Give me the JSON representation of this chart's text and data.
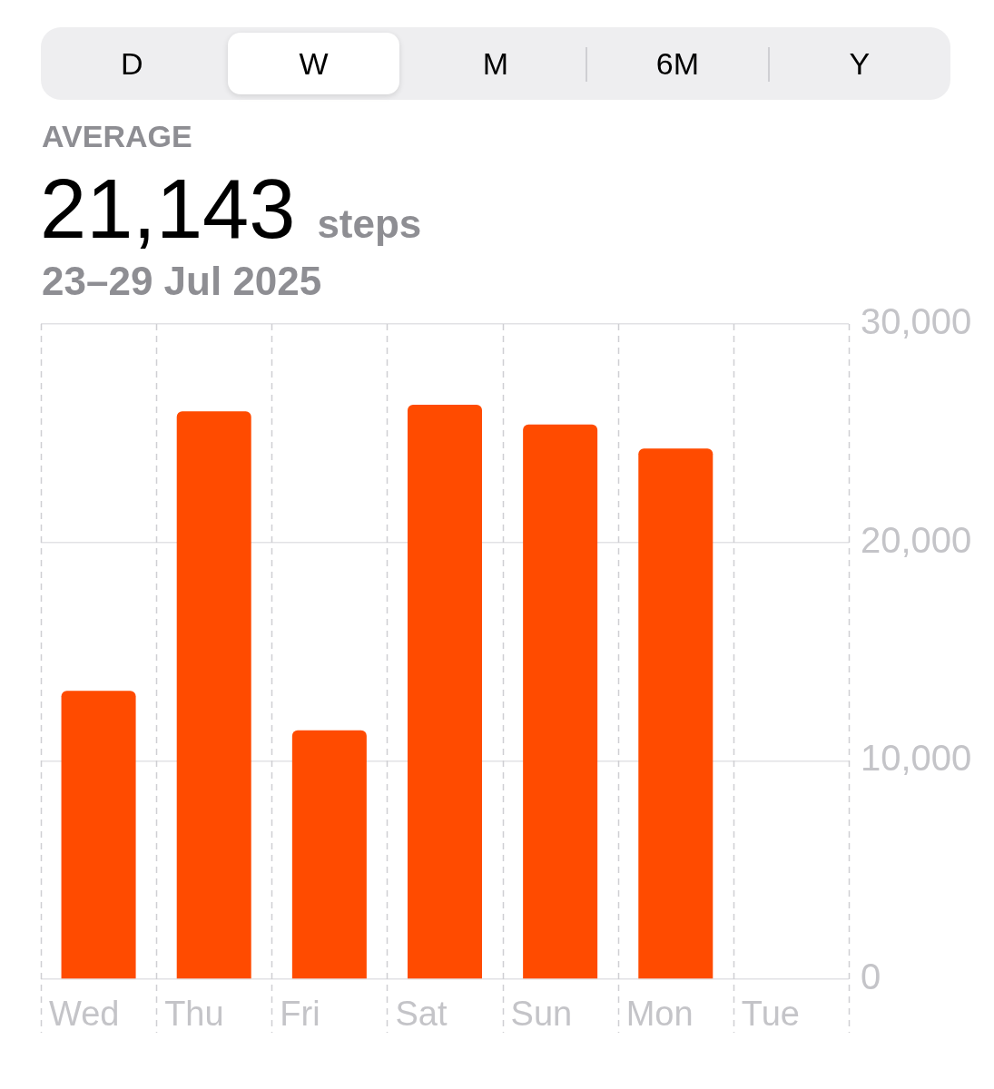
{
  "chart_data": {
    "type": "bar",
    "title": "AVERAGE",
    "subtitle": "23–29 Jul 2025",
    "annotations": [
      "D",
      "W",
      "M",
      "6M",
      "Y",
      "21,143",
      "steps"
    ],
    "categories": [
      "Wed",
      "Thu",
      "Fri",
      "Sat",
      "Sun",
      "Mon",
      "Tue"
    ],
    "values": [
      13200,
      26000,
      11400,
      26300,
      25400,
      24300,
      null
    ],
    "color": "#ff4b00",
    "ylim": [
      0,
      30000
    ],
    "yticks": [
      0,
      {
        "value": 10000,
        "label": "10,000"
      },
      {
        "value": 20000,
        "label": "20,000"
      },
      {
        "value": 30000,
        "label": "30,000"
      }
    ],
    "grid": true
  }
}
